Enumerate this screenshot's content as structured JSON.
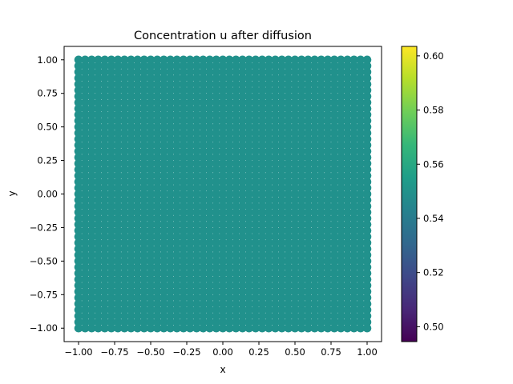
{
  "chart_data": {
    "type": "scatter",
    "title": "Concentration u after diffusion",
    "xlabel": "x",
    "ylabel": "y",
    "xlim": [
      -1.1,
      1.1
    ],
    "ylim": [
      -1.1,
      1.1
    ],
    "x_ticks": [
      -1.0,
      -0.75,
      -0.5,
      -0.25,
      0.0,
      0.25,
      0.5,
      0.75,
      1.0
    ],
    "x_tick_labels": [
      "−1.00",
      "−0.75",
      "−0.50",
      "−0.25",
      "0.00",
      "0.25",
      "0.50",
      "0.75",
      "1.00"
    ],
    "y_ticks": [
      -1.0,
      -0.75,
      -0.5,
      -0.25,
      0.0,
      0.25,
      0.5,
      0.75,
      1.0
    ],
    "y_tick_labels": [
      "−1.00",
      "−0.75",
      "−0.50",
      "−0.25",
      "0.00",
      "0.25",
      "0.50",
      "0.75",
      "1.00"
    ],
    "point_domain": {
      "x": [
        -1.0,
        1.0
      ],
      "y": [
        -1.0,
        1.0
      ]
    },
    "point_value": 0.549,
    "point_color": "#21918c",
    "grid": false,
    "colorbar": {
      "colormap": "viridis",
      "range": [
        0.4945,
        0.6035
      ],
      "ticks": [
        0.5,
        0.52,
        0.54,
        0.56,
        0.58,
        0.6
      ],
      "tick_labels": [
        "0.50",
        "0.52",
        "0.54",
        "0.56",
        "0.58",
        "0.60"
      ],
      "stops": [
        "#440154",
        "#482878",
        "#3e4989",
        "#31688e",
        "#26828e",
        "#1f9e89",
        "#35b779",
        "#6ece58",
        "#b5de2b",
        "#fde725"
      ]
    }
  }
}
